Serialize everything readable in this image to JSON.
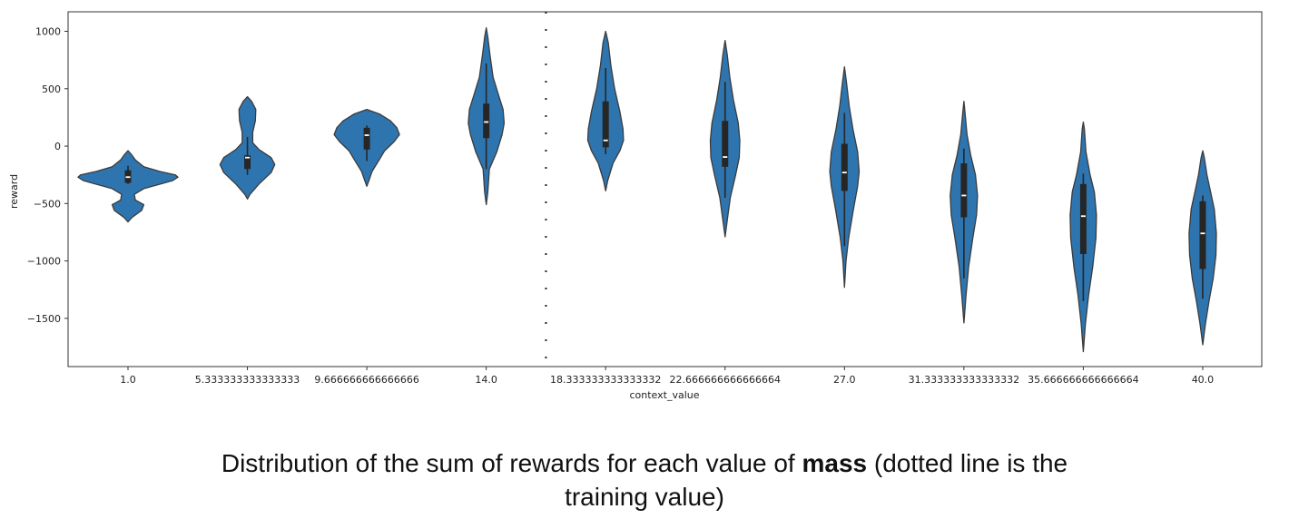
{
  "chart_data": {
    "type": "violin",
    "xlabel": "context_value",
    "ylabel": "reward",
    "ylim": [
      -1920,
      1170
    ],
    "yticks": [
      1000,
      500,
      0,
      -500,
      -1000,
      -1500
    ],
    "ytick_labels": [
      "1000",
      "500",
      "0",
      "−500",
      "−1000",
      "−1500"
    ],
    "categories": [
      "1.0",
      "5.333333333333333",
      "9.666666666666666",
      "14.0",
      "18.333333333333332",
      "22.666666666666664",
      "27.0",
      "31.333333333333332",
      "35.666666666666664",
      "40.0"
    ],
    "training_value_line": {
      "between_categories": [
        3,
        4
      ],
      "style": "dotted"
    },
    "fill_color": "#2e75b0",
    "edge_color": "#3b3b3b",
    "box_color": "#262626",
    "median_color": "#ffffff",
    "violins": [
      {
        "category": "1.0",
        "min": -660,
        "max": -40,
        "q1": -320,
        "median": -270,
        "q3": -210,
        "whisker_low": -330,
        "whisker_high": -170,
        "profile": [
          [
            -660,
            0.0
          ],
          [
            -620,
            0.08
          ],
          [
            -560,
            0.26
          ],
          [
            -510,
            0.3
          ],
          [
            -470,
            0.14
          ],
          [
            -420,
            0.12
          ],
          [
            -370,
            0.3
          ],
          [
            -330,
            0.62
          ],
          [
            -300,
            0.85
          ],
          [
            -270,
            0.95
          ],
          [
            -250,
            0.9
          ],
          [
            -220,
            0.6
          ],
          [
            -180,
            0.3
          ],
          [
            -120,
            0.14
          ],
          [
            -70,
            0.06
          ],
          [
            -40,
            0.0
          ]
        ]
      },
      {
        "category": "5.333333333333333",
        "min": -460,
        "max": 430,
        "q1": -200,
        "median": -100,
        "q3": -80,
        "whisker_low": -250,
        "whisker_high": 80,
        "profile": [
          [
            -460,
            0.0
          ],
          [
            -420,
            0.05
          ],
          [
            -330,
            0.22
          ],
          [
            -230,
            0.45
          ],
          [
            -160,
            0.52
          ],
          [
            -100,
            0.45
          ],
          [
            -30,
            0.22
          ],
          [
            30,
            0.1
          ],
          [
            120,
            0.1
          ],
          [
            220,
            0.15
          ],
          [
            320,
            0.16
          ],
          [
            390,
            0.08
          ],
          [
            430,
            0.0
          ]
        ]
      },
      {
        "category": "9.666666666666666",
        "min": -350,
        "max": 320,
        "q1": -30,
        "median": 95,
        "q3": 160,
        "whisker_low": -130,
        "whisker_high": 180,
        "profile": [
          [
            -350,
            0.0
          ],
          [
            -300,
            0.04
          ],
          [
            -220,
            0.1
          ],
          [
            -130,
            0.22
          ],
          [
            -40,
            0.34
          ],
          [
            40,
            0.52
          ],
          [
            100,
            0.62
          ],
          [
            160,
            0.57
          ],
          [
            220,
            0.45
          ],
          [
            280,
            0.24
          ],
          [
            320,
            0.0
          ]
        ]
      },
      {
        "category": "14.0",
        "min": -510,
        "max": 1030,
        "q1": 70,
        "median": 210,
        "q3": 370,
        "whisker_low": -200,
        "whisker_high": 720,
        "profile": [
          [
            -510,
            0.0
          ],
          [
            -400,
            0.03
          ],
          [
            -200,
            0.06
          ],
          [
            -50,
            0.2
          ],
          [
            100,
            0.3
          ],
          [
            200,
            0.34
          ],
          [
            320,
            0.32
          ],
          [
            450,
            0.23
          ],
          [
            600,
            0.13
          ],
          [
            800,
            0.07
          ],
          [
            950,
            0.03
          ],
          [
            1030,
            0.0
          ]
        ]
      },
      {
        "category": "18.333333333333332",
        "min": -390,
        "max": 1000,
        "q1": -10,
        "median": 50,
        "q3": 390,
        "whisker_low": -70,
        "whisker_high": 680,
        "profile": [
          [
            -390,
            0.0
          ],
          [
            -300,
            0.04
          ],
          [
            -150,
            0.14
          ],
          [
            -40,
            0.27
          ],
          [
            50,
            0.34
          ],
          [
            150,
            0.33
          ],
          [
            300,
            0.27
          ],
          [
            500,
            0.17
          ],
          [
            700,
            0.1
          ],
          [
            900,
            0.05
          ],
          [
            1000,
            0.0
          ]
        ]
      },
      {
        "category": "22.666666666666664",
        "min": -790,
        "max": 920,
        "q1": -180,
        "median": -95,
        "q3": 220,
        "whisker_low": -450,
        "whisker_high": 560,
        "profile": [
          [
            -790,
            0.0
          ],
          [
            -650,
            0.04
          ],
          [
            -450,
            0.1
          ],
          [
            -250,
            0.2
          ],
          [
            -100,
            0.27
          ],
          [
            50,
            0.28
          ],
          [
            200,
            0.25
          ],
          [
            400,
            0.16
          ],
          [
            600,
            0.09
          ],
          [
            800,
            0.04
          ],
          [
            920,
            0.0
          ]
        ]
      },
      {
        "category": "27.0",
        "min": -1230,
        "max": 690,
        "q1": -390,
        "median": -230,
        "q3": 20,
        "whisker_low": -870,
        "whisker_high": 290,
        "profile": [
          [
            -1230,
            0.0
          ],
          [
            -1000,
            0.03
          ],
          [
            -800,
            0.08
          ],
          [
            -550,
            0.17
          ],
          [
            -350,
            0.25
          ],
          [
            -220,
            0.28
          ],
          [
            -50,
            0.25
          ],
          [
            150,
            0.16
          ],
          [
            350,
            0.09
          ],
          [
            550,
            0.04
          ],
          [
            690,
            0.0
          ]
        ]
      },
      {
        "category": "31.333333333333332",
        "min": -1540,
        "max": 390,
        "q1": -620,
        "median": -430,
        "q3": -150,
        "whisker_low": -1150,
        "whisker_high": -20,
        "profile": [
          [
            -1540,
            0.0
          ],
          [
            -1300,
            0.04
          ],
          [
            -1050,
            0.09
          ],
          [
            -800,
            0.17
          ],
          [
            -600,
            0.24
          ],
          [
            -430,
            0.26
          ],
          [
            -250,
            0.22
          ],
          [
            -80,
            0.13
          ],
          [
            100,
            0.06
          ],
          [
            300,
            0.02
          ],
          [
            390,
            0.0
          ]
        ]
      },
      {
        "category": "35.666666666666664",
        "min": -1790,
        "max": 210,
        "q1": -940,
        "median": -610,
        "q3": -330,
        "whisker_low": -1350,
        "whisker_high": -240,
        "profile": [
          [
            -1790,
            0.0
          ],
          [
            -1550,
            0.04
          ],
          [
            -1300,
            0.1
          ],
          [
            -1050,
            0.18
          ],
          [
            -800,
            0.24
          ],
          [
            -600,
            0.25
          ],
          [
            -400,
            0.21
          ],
          [
            -250,
            0.13
          ],
          [
            -50,
            0.05
          ],
          [
            150,
            0.02
          ],
          [
            210,
            0.0
          ]
        ]
      },
      {
        "category": "40.0",
        "min": -1730,
        "max": -40,
        "q1": -1070,
        "median": -760,
        "q3": -480,
        "whisker_low": -1330,
        "whisker_high": -430,
        "profile": [
          [
            -1730,
            0.0
          ],
          [
            -1550,
            0.05
          ],
          [
            -1350,
            0.12
          ],
          [
            -1150,
            0.2
          ],
          [
            -950,
            0.25
          ],
          [
            -760,
            0.26
          ],
          [
            -550,
            0.22
          ],
          [
            -400,
            0.15
          ],
          [
            -250,
            0.08
          ],
          [
            -100,
            0.03
          ],
          [
            -40,
            0.0
          ]
        ]
      }
    ]
  },
  "caption": {
    "line1_prefix": "Distribution of the sum of rewards for each value of ",
    "line1_bold": "mass",
    "line1_suffix": " (dotted line is the",
    "line2": "training value)"
  }
}
